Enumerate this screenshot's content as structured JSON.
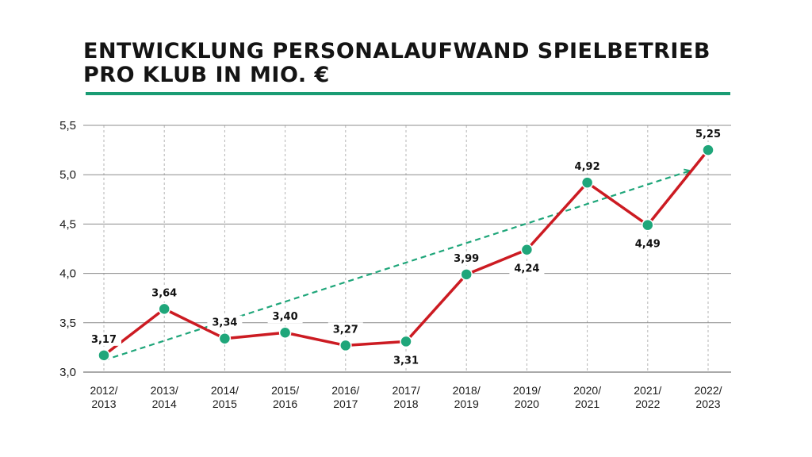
{
  "chart_data": {
    "type": "line",
    "title_lines": [
      "ENTWICKLUNG PERSONALAUFWAND SPIELBETRIEB",
      "PRO KLUB  IN MIO. €"
    ],
    "x_lines": [
      [
        "2012/",
        "2013"
      ],
      [
        "2013/",
        "2014"
      ],
      [
        "2014/",
        "2015"
      ],
      [
        "2015/",
        "2016"
      ],
      [
        "2016/",
        "2017"
      ],
      [
        "2017/",
        "2018"
      ],
      [
        "2018/",
        "2019"
      ],
      [
        "2019/",
        "2020"
      ],
      [
        "2020/",
        "2021"
      ],
      [
        "2021/",
        "2022"
      ],
      [
        "2022/",
        "2023"
      ]
    ],
    "values": [
      3.17,
      3.64,
      3.34,
      3.4,
      3.27,
      3.31,
      3.99,
      4.24,
      4.92,
      4.49,
      5.25
    ],
    "value_labels": [
      "3,17",
      "3,64",
      "3,34",
      "3,40",
      "3,27",
      "3,31",
      "3,99",
      "4,24",
      "4,92",
      "4,49",
      "5,25"
    ],
    "label_position": [
      "above",
      "above",
      "above",
      "above",
      "above",
      "below",
      "above",
      "below",
      "above",
      "below",
      "above"
    ],
    "y_ticks": [
      3.0,
      3.5,
      4.0,
      4.5,
      5.0,
      5.5
    ],
    "y_tick_labels": [
      "3,0",
      "3,5",
      "4,0",
      "4,5",
      "5,0",
      "5,5"
    ],
    "ylim": [
      3.0,
      5.5
    ],
    "trend": {
      "from": [
        0,
        3.12
      ],
      "to": [
        9.7,
        5.04
      ],
      "style": "dashed-arrow"
    },
    "grid": true,
    "colors": {
      "line": "#cc1b22",
      "marker": "#1fa67a",
      "trend": "#1fa67a",
      "rule": "#1a9c74",
      "grid": "#8c8c8c"
    }
  }
}
